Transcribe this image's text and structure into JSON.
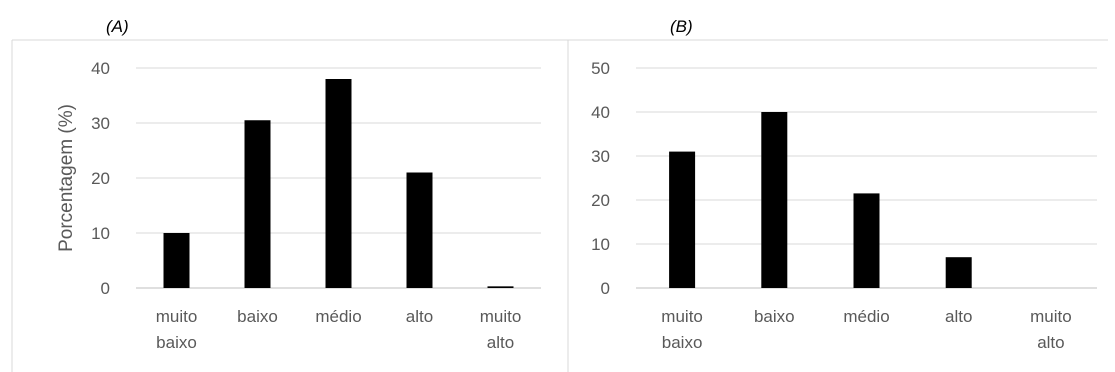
{
  "chart_data": [
    {
      "type": "bar",
      "title": "(A)",
      "ylabel": "Porcentagem (%)",
      "xlabel": "",
      "categories": [
        [
          "muito",
          "baixo"
        ],
        [
          "baixo"
        ],
        [
          "médio"
        ],
        [
          "alto"
        ],
        [
          "muito",
          "alto"
        ]
      ],
      "values": [
        10,
        30.5,
        38,
        21,
        0.3
      ],
      "ylim": [
        0,
        40
      ],
      "yticks": [
        0,
        10,
        20,
        30,
        40
      ],
      "grid": true,
      "bar_color": "#000000"
    },
    {
      "type": "bar",
      "title": "(B)",
      "ylabel": "",
      "xlabel": "",
      "categories": [
        [
          "muito",
          "baixo"
        ],
        [
          "baixo"
        ],
        [
          "médio"
        ],
        [
          "alto"
        ],
        [
          "muito",
          "alto"
        ]
      ],
      "values": [
        31,
        40,
        21.5,
        7,
        0
      ],
      "ylim": [
        0,
        50
      ],
      "yticks": [
        0,
        10,
        20,
        30,
        40,
        50
      ],
      "grid": true,
      "bar_color": "#000000"
    }
  ],
  "colors": {
    "grid": "#d9d9d9",
    "axis_text": "#595959",
    "panel_border": "#d9d9d9"
  }
}
